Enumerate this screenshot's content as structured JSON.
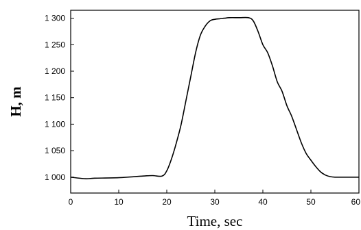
{
  "chart_data": {
    "type": "line",
    "title": "",
    "xlabel": "Time, sec",
    "ylabel": "H, m",
    "xlim": [
      0,
      60
    ],
    "ylim": [
      970,
      1315
    ],
    "x_ticks": [
      0,
      10,
      20,
      30,
      40,
      50,
      60
    ],
    "x_tick_labels": [
      "0",
      "10",
      "20",
      "30",
      "40",
      "50",
      "60"
    ],
    "y_ticks": [
      1000,
      1050,
      1100,
      1150,
      1200,
      1250,
      1300
    ],
    "y_tick_labels": [
      "1 000",
      "1 050",
      "1 100",
      "1 150",
      "1 200",
      "1 250",
      "1 300"
    ],
    "grid": false,
    "legend": "none",
    "line_color": "#000000",
    "series": [
      {
        "x": [
          0,
          3,
          5,
          10,
          15,
          17,
          19,
          20,
          21,
          22,
          23,
          24,
          25,
          26,
          27,
          28,
          29,
          30,
          31,
          32,
          33,
          35,
          37,
          38,
          39,
          40,
          41,
          42,
          43,
          44,
          45,
          46,
          47,
          48,
          49,
          50,
          51,
          52,
          53,
          54,
          55,
          56,
          58,
          60
        ],
        "y": [
          1000,
          997,
          998,
          999,
          1002,
          1003,
          1002,
          1012,
          1035,
          1065,
          1100,
          1145,
          1190,
          1235,
          1268,
          1285,
          1295,
          1298,
          1299,
          1300,
          1301,
          1301,
          1301,
          1295,
          1275,
          1250,
          1235,
          1210,
          1180,
          1162,
          1135,
          1115,
          1090,
          1065,
          1045,
          1032,
          1020,
          1010,
          1004,
          1001,
          1000,
          1000,
          1000,
          1000
        ]
      }
    ]
  }
}
